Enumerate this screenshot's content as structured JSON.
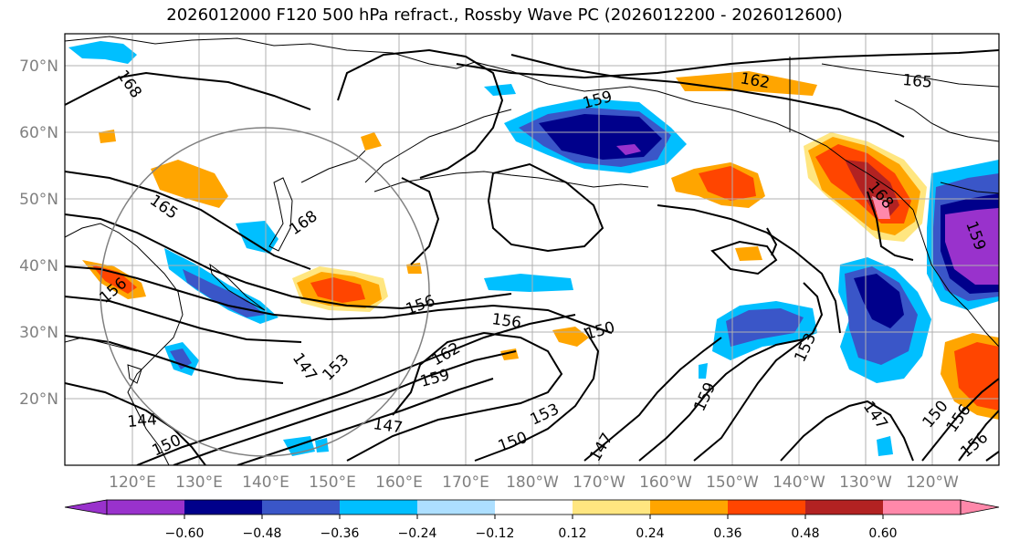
{
  "title": "2026012000 F120 500 hPa refract., Rossby Wave PC (2026012200 - 2026012600)",
  "lat_labels": [
    "70°N",
    "60°N",
    "50°N",
    "40°N",
    "30°N",
    "20°N"
  ],
  "lon_labels": [
    "120°E",
    "130°E",
    "140°E",
    "150°E",
    "160°E",
    "170°E",
    "180°W",
    "170°W",
    "160°W",
    "150°W",
    "140°W",
    "130°W",
    "120°W"
  ],
  "colorbar": {
    "ticks": [
      "−0.60",
      "−0.48",
      "−0.36",
      "−0.24",
      "−0.12",
      "0.12",
      "0.24",
      "0.36",
      "0.48",
      "0.60"
    ],
    "colors": [
      "#9932CC",
      "#00008B",
      "#3A56C8",
      "#00BFFF",
      "#ADDFFF",
      "#FFFFFF",
      "#FFE680",
      "#FFA500",
      "#FF4500",
      "#B22222",
      "#FF88AA"
    ]
  },
  "contour_labels": [
    "168",
    "165",
    "162",
    "159",
    "165",
    "168",
    "156",
    "156",
    "156",
    "150",
    "162",
    "159",
    "153",
    "147",
    "147",
    "153",
    "150",
    "147",
    "144",
    "150",
    "153",
    "159",
    "147",
    "150",
    "156",
    "156",
    "159",
    "168"
  ]
}
